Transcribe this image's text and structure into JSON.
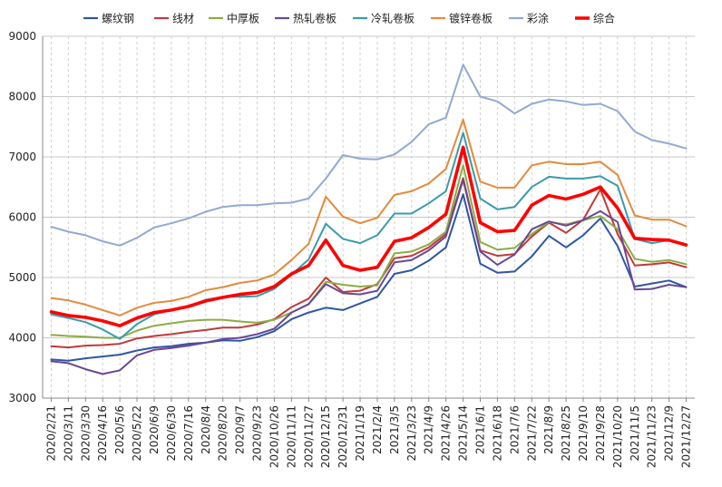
{
  "chart_data": {
    "type": "line",
    "ylim": [
      3000,
      9000
    ],
    "yticks": [
      3000,
      4000,
      5000,
      6000,
      7000,
      8000,
      9000
    ],
    "grid": true,
    "legend_position": "top",
    "x_tick_labels": [
      "2020/2/21",
      "2020/3/11",
      "2020/3/30",
      "2020/4/16",
      "2020/5/6",
      "2020/5/22",
      "2020/6/9",
      "2020/6/30",
      "2020/7/16",
      "2020/8/4",
      "2020/8/20",
      "2020/9/7",
      "2020/9/23",
      "2020/10/26",
      "2020/11/11",
      "2020/11/27",
      "2020/12/15",
      "2020/12/31",
      "2021/1/19",
      "2021/2/4",
      "2021/3/5",
      "2021/3/23",
      "2021/4/9",
      "2021/4/26",
      "2021/5/14",
      "2021/6/1",
      "2021/6/18",
      "2021/7/6",
      "2021/7/22",
      "2021/8/9",
      "2021/8/25",
      "2021/9/10",
      "2021/9/28",
      "2021/10/20",
      "2021/11/5",
      "2021/11/23",
      "2021/12/9",
      "2021/12/27"
    ],
    "series": [
      {
        "name": "螺纹钢",
        "color": "#2e56a3",
        "width": 2,
        "values": [
          3640,
          3620,
          3660,
          3690,
          3720,
          3790,
          3840,
          3860,
          3900,
          3920,
          3960,
          3950,
          4010,
          4110,
          4310,
          4420,
          4500,
          4460,
          4570,
          4680,
          5060,
          5120,
          5280,
          5500,
          6380,
          5230,
          5080,
          5100,
          5350,
          5690,
          5500,
          5700,
          5980,
          5520,
          4850,
          4900,
          4950,
          4840
        ]
      },
      {
        "name": "线材",
        "color": "#bf3a3a",
        "width": 2,
        "values": [
          3860,
          3840,
          3870,
          3880,
          3900,
          3990,
          4030,
          4060,
          4100,
          4130,
          4170,
          4170,
          4220,
          4310,
          4510,
          4650,
          5000,
          4760,
          4780,
          4890,
          5320,
          5360,
          5500,
          5720,
          6650,
          5450,
          5360,
          5390,
          5680,
          5910,
          5740,
          5960,
          6460,
          5720,
          5200,
          5220,
          5250,
          5170
        ]
      },
      {
        "name": "中厚板",
        "color": "#8cac44",
        "width": 2,
        "values": [
          4050,
          4030,
          4020,
          4000,
          4000,
          4120,
          4200,
          4240,
          4280,
          4300,
          4300,
          4270,
          4250,
          4300,
          4420,
          4560,
          4930,
          4880,
          4850,
          4870,
          5400,
          5430,
          5550,
          5760,
          6860,
          5590,
          5460,
          5490,
          5720,
          5920,
          5880,
          5950,
          6020,
          5800,
          5310,
          5260,
          5290,
          5220
        ]
      },
      {
        "name": "热轧卷板",
        "color": "#6a4894",
        "width": 2,
        "values": [
          3610,
          3580,
          3480,
          3400,
          3460,
          3710,
          3800,
          3830,
          3870,
          3920,
          3980,
          4000,
          4060,
          4150,
          4420,
          4560,
          4890,
          4740,
          4720,
          4780,
          5250,
          5290,
          5450,
          5680,
          6620,
          5430,
          5210,
          5380,
          5800,
          5930,
          5860,
          5950,
          6100,
          5920,
          4800,
          4810,
          4880,
          4840
        ]
      },
      {
        "name": "冷轧卷板",
        "color": "#3b9bab",
        "width": 2,
        "values": [
          4390,
          4330,
          4260,
          4140,
          3980,
          4230,
          4390,
          4460,
          4520,
          4630,
          4680,
          4680,
          4690,
          4810,
          5050,
          5300,
          5890,
          5640,
          5570,
          5700,
          6060,
          6060,
          6230,
          6430,
          7400,
          6310,
          6130,
          6170,
          6500,
          6670,
          6640,
          6640,
          6680,
          6520,
          5640,
          5570,
          5620,
          5550
        ]
      },
      {
        "name": "镀锌卷板",
        "color": "#e48a3c",
        "width": 2,
        "values": [
          4660,
          4620,
          4550,
          4460,
          4370,
          4500,
          4580,
          4610,
          4680,
          4790,
          4840,
          4910,
          4950,
          5050,
          5290,
          5560,
          6340,
          6010,
          5900,
          5990,
          6370,
          6430,
          6560,
          6800,
          7620,
          6590,
          6490,
          6490,
          6860,
          6920,
          6880,
          6880,
          6920,
          6700,
          6030,
          5960,
          5960,
          5850
        ]
      },
      {
        "name": "彩涂",
        "color": "#92a9d2",
        "width": 2,
        "values": [
          5840,
          5760,
          5700,
          5600,
          5530,
          5660,
          5830,
          5900,
          5980,
          6090,
          6170,
          6200,
          6200,
          6230,
          6240,
          6310,
          6640,
          7030,
          6970,
          6960,
          7040,
          7250,
          7540,
          7650,
          8530,
          8000,
          7920,
          7720,
          7880,
          7950,
          7920,
          7860,
          7880,
          7760,
          7420,
          7280,
          7220,
          7140
        ]
      },
      {
        "name": "综合",
        "color": "#ff0000",
        "width": 3.6,
        "values": [
          4430,
          4370,
          4340,
          4280,
          4200,
          4330,
          4420,
          4460,
          4520,
          4610,
          4670,
          4720,
          4750,
          4850,
          5060,
          5200,
          5620,
          5200,
          5120,
          5170,
          5600,
          5660,
          5830,
          6050,
          7160,
          5910,
          5760,
          5780,
          6200,
          6360,
          6300,
          6380,
          6500,
          6150,
          5650,
          5630,
          5620,
          5540
        ]
      }
    ]
  }
}
